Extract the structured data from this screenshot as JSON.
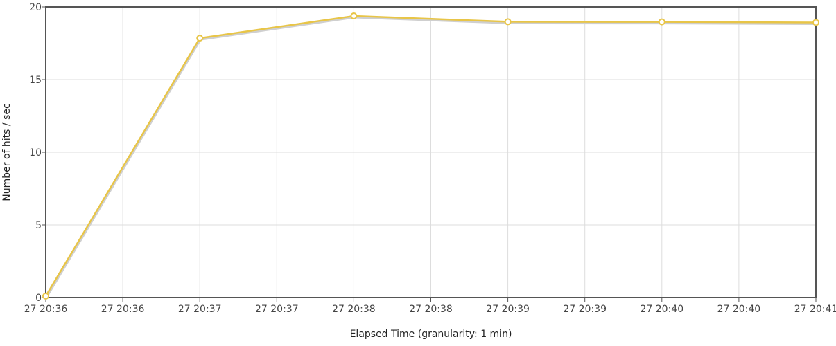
{
  "chart_data": {
    "type": "line",
    "xlabel": "Elapsed Time (granularity: 1 min)",
    "ylabel": "Number of hits / sec",
    "ylim": [
      0,
      20
    ],
    "yticks": [
      0,
      5,
      10,
      15,
      20
    ],
    "xticks": [
      "27 20:36",
      "27 20:36",
      "27 20:37",
      "27 20:37",
      "27 20:38",
      "27 20:38",
      "27 20:39",
      "27 20:39",
      "27 20:40",
      "27 20:40",
      "27 20:41"
    ],
    "x": [
      "27 20:36",
      "27 20:37",
      "27 20:38",
      "27 20:39",
      "27 20:40",
      "27 20:41"
    ],
    "series": [
      {
        "values": [
          0.1,
          17.85,
          19.38,
          18.98,
          18.97,
          18.93
        ]
      }
    ],
    "grid": true,
    "legend": "none",
    "line_color": "#e8c547",
    "shadow_color": "#cfcfcf",
    "marker_fill": "#ffffff"
  }
}
